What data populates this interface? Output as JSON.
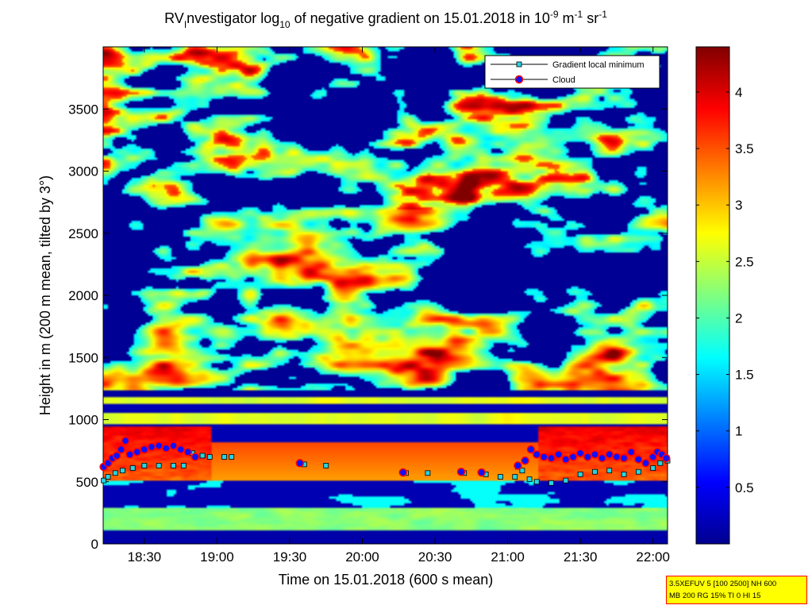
{
  "chart_data": {
    "type": "heatmap",
    "title": {
      "prefix": "RV",
      "sub_i": "I",
      "mid": "nvestigator log",
      "sub_10": "10",
      "after": " of negative gradient on 15.01.2018 in 10",
      "sup1": "-9",
      "m": " m",
      "sup2": "-1",
      "sr": " sr",
      "sup3": "-1"
    },
    "xlabel": "Time on 15.01.2018 (600 s mean)",
    "ylabel": "Height in m (200 m mean, tilted by 3°)",
    "x_range_hours": [
      18.2167,
      22.1
    ],
    "ylim": [
      0,
      4000
    ],
    "x_ticks": [
      {
        "h": 18.5,
        "label": "18:30"
      },
      {
        "h": 19.0,
        "label": "19:00"
      },
      {
        "h": 19.5,
        "label": "19:30"
      },
      {
        "h": 20.0,
        "label": "20:00"
      },
      {
        "h": 20.5,
        "label": "20:30"
      },
      {
        "h": 21.0,
        "label": "21:00"
      },
      {
        "h": 21.5,
        "label": "21:30"
      },
      {
        "h": 22.0,
        "label": "22:00"
      }
    ],
    "y_ticks": [
      {
        "v": 0,
        "label": "0"
      },
      {
        "v": 500,
        "label": "500"
      },
      {
        "v": 1000,
        "label": "1000"
      },
      {
        "v": 1500,
        "label": "1500"
      },
      {
        "v": 2000,
        "label": "2000"
      },
      {
        "v": 2500,
        "label": "2500"
      },
      {
        "v": 3000,
        "label": "3000"
      },
      {
        "v": 3500,
        "label": "3500"
      }
    ],
    "colorbar": {
      "range": [
        0,
        4.4
      ],
      "colormap": "jet",
      "ticks": [
        {
          "v": 0.5,
          "label": "0.5"
        },
        {
          "v": 1.0,
          "label": "1"
        },
        {
          "v": 1.5,
          "label": "1.5"
        },
        {
          "v": 2.0,
          "label": "2"
        },
        {
          "v": 2.5,
          "label": "2.5"
        },
        {
          "v": 3.0,
          "label": "3"
        },
        {
          "v": 3.5,
          "label": "3.5"
        },
        {
          "v": 4.0,
          "label": "4"
        }
      ]
    },
    "legend": {
      "placement": "top-right",
      "entries": [
        {
          "label": "Gradient local minimum",
          "marker": "square",
          "color": "#29d3e0"
        },
        {
          "label": "Cloud",
          "marker": "circle",
          "color": "#1010ff",
          "edge": "#ff0000"
        }
      ]
    },
    "series": [
      {
        "marker": "square",
        "color": "#29d3e0",
        "points": [
          [
            18.22,
            510
          ],
          [
            18.25,
            540
          ],
          [
            18.3,
            570
          ],
          [
            18.35,
            590
          ],
          [
            18.42,
            610
          ],
          [
            18.5,
            630
          ],
          [
            18.6,
            630
          ],
          [
            18.7,
            630
          ],
          [
            18.77,
            630
          ],
          [
            18.83,
            730
          ],
          [
            18.9,
            710
          ],
          [
            18.95,
            700
          ],
          [
            19.05,
            700
          ],
          [
            19.1,
            700
          ],
          [
            19.6,
            640
          ],
          [
            19.75,
            630
          ],
          [
            20.3,
            570
          ],
          [
            20.45,
            570
          ],
          [
            20.7,
            570
          ],
          [
            20.85,
            560
          ],
          [
            20.95,
            540
          ],
          [
            21.05,
            540
          ],
          [
            21.07,
            620
          ],
          [
            21.1,
            590
          ],
          [
            21.15,
            520
          ],
          [
            21.2,
            500
          ],
          [
            21.3,
            490
          ],
          [
            21.4,
            510
          ],
          [
            21.5,
            560
          ],
          [
            21.6,
            580
          ],
          [
            21.7,
            590
          ],
          [
            21.8,
            560
          ],
          [
            21.9,
            580
          ],
          [
            22.0,
            610
          ],
          [
            22.05,
            650
          ],
          [
            22.1,
            670
          ]
        ]
      },
      {
        "marker": "circle",
        "color": "#1010ff",
        "points": [
          [
            18.22,
            620
          ],
          [
            18.25,
            650
          ],
          [
            18.28,
            690
          ],
          [
            18.31,
            710
          ],
          [
            18.34,
            760
          ],
          [
            18.37,
            830
          ],
          [
            18.4,
            720
          ],
          [
            18.45,
            740
          ],
          [
            18.5,
            760
          ],
          [
            18.55,
            780
          ],
          [
            18.6,
            790
          ],
          [
            18.65,
            770
          ],
          [
            18.7,
            790
          ],
          [
            18.75,
            760
          ],
          [
            18.8,
            740
          ],
          [
            18.85,
            700
          ],
          [
            19.57,
            650
          ],
          [
            20.28,
            575
          ],
          [
            20.68,
            580
          ],
          [
            20.82,
            575
          ],
          [
            21.07,
            630
          ],
          [
            21.12,
            670
          ],
          [
            21.16,
            760
          ],
          [
            21.2,
            720
          ],
          [
            21.25,
            700
          ],
          [
            21.3,
            690
          ],
          [
            21.35,
            720
          ],
          [
            21.4,
            680
          ],
          [
            21.45,
            700
          ],
          [
            21.5,
            730
          ],
          [
            21.55,
            700
          ],
          [
            21.6,
            720
          ],
          [
            21.65,
            690
          ],
          [
            21.7,
            720
          ],
          [
            21.75,
            700
          ],
          [
            21.8,
            690
          ],
          [
            21.85,
            740
          ],
          [
            21.9,
            680
          ],
          [
            21.95,
            650
          ],
          [
            22.0,
            700
          ],
          [
            22.03,
            740
          ],
          [
            22.06,
            720
          ],
          [
            22.09,
            690
          ]
        ]
      }
    ]
  },
  "info_box": {
    "line1": "3.5XEFUV 5 [100 2500] NH 600",
    "line2": "MB 200 RG 15% TI 0 HI 15"
  }
}
